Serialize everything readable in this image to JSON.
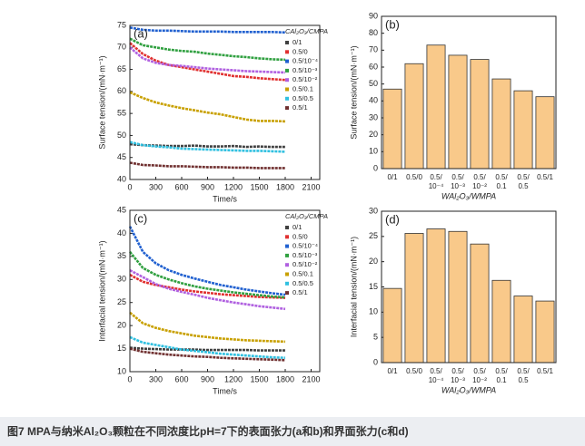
{
  "caption": "图7 MPA与纳米Al₂O₃颗粒在不同浓度比pH=7下的表面张力(a和b)和界面张力(c和d)",
  "chart_data": [
    {
      "type": "line",
      "panel_label": "(a)",
      "x_label": "Time/s",
      "y_label": "Surface tension/(mN·m⁻¹)",
      "xlim": [
        0,
        2200
      ],
      "xticks": [
        0,
        300,
        600,
        900,
        1200,
        1500,
        1800,
        2100
      ],
      "ylim": [
        40,
        75
      ],
      "yticks": [
        40,
        45,
        50,
        55,
        60,
        65,
        70,
        75
      ],
      "legend_title": "CAl₂O₃/CMPA",
      "legend_position": "upper right",
      "x": [
        0,
        150,
        300,
        450,
        600,
        750,
        900,
        1050,
        1200,
        1350,
        1500,
        1650,
        1800
      ],
      "series": [
        {
          "name": "0/1",
          "color": "#404040",
          "values": [
            48,
            47.8,
            47.7,
            47.6,
            47.6,
            47.7,
            47.5,
            47.5,
            47.6,
            47.4,
            47.5,
            47.4,
            47.4
          ]
        },
        {
          "name": "0.5/0",
          "color": "#e03030",
          "values": [
            71,
            68.5,
            67,
            66,
            65.5,
            65,
            64.5,
            64,
            63.5,
            63.3,
            63,
            62.8,
            62.6
          ]
        },
        {
          "name": "0.5/10⁻⁴",
          "color": "#2060d0",
          "values": [
            74.5,
            74,
            73.8,
            73.8,
            73.7,
            73.6,
            73.6,
            73.6,
            73.5,
            73.5,
            73.5,
            73.5,
            73.4
          ]
        },
        {
          "name": "0.5/10⁻³",
          "color": "#30a040",
          "values": [
            72,
            70.5,
            70,
            69.5,
            69.2,
            69,
            68.6,
            68.3,
            68,
            67.8,
            67.5,
            67.3,
            67.2
          ]
        },
        {
          "name": "0.5/10⁻²",
          "color": "#b060e0",
          "values": [
            70,
            67.5,
            66.5,
            66,
            65.8,
            65.5,
            65.2,
            65,
            64.8,
            64.6,
            64.5,
            64.4,
            64.3
          ]
        },
        {
          "name": "0.5/0.1",
          "color": "#c8a000",
          "values": [
            59.8,
            58.5,
            57.5,
            56.8,
            56.2,
            55.7,
            55.2,
            54.8,
            54.2,
            53.6,
            53.3,
            53.3,
            53.2
          ]
        },
        {
          "name": "0.5/0.5",
          "color": "#30c0e0",
          "values": [
            48.5,
            47.8,
            47.5,
            47.3,
            47,
            46.9,
            46.8,
            46.7,
            46.6,
            46.5,
            46.5,
            46.4,
            46.3
          ]
        },
        {
          "name": "0.5/1",
          "color": "#703030",
          "values": [
            43.8,
            43.3,
            43.2,
            43,
            43,
            42.9,
            42.8,
            42.8,
            42.7,
            42.7,
            42.6,
            42.6,
            42.6
          ]
        }
      ]
    },
    {
      "type": "bar",
      "panel_label": "(b)",
      "x_label": "WAl₂O₃/WMPA",
      "y_label": "Surface tension/(mN·m⁻¹)",
      "ylim": [
        0,
        90
      ],
      "yticks": [
        0,
        10,
        20,
        30,
        40,
        50,
        60,
        70,
        80,
        90
      ],
      "color": "#f9c98a",
      "categories": [
        [
          "0/1"
        ],
        [
          "0.5/0"
        ],
        [
          "0.5/",
          "10⁻⁴"
        ],
        [
          "0.5/",
          "10⁻³"
        ],
        [
          "0.5/",
          "10⁻²"
        ],
        [
          "0.5/",
          "0.1"
        ],
        [
          "0.5/",
          "0.5"
        ],
        [
          "0.5/1"
        ]
      ],
      "values": [
        47,
        62,
        73,
        67,
        64.5,
        53,
        46,
        42.5
      ]
    },
    {
      "type": "line",
      "panel_label": "(c)",
      "x_label": "Time/s",
      "y_label": "Interfacial tension/(mN·m⁻¹)",
      "xlim": [
        0,
        2200
      ],
      "xticks": [
        0,
        300,
        600,
        900,
        1200,
        1500,
        1800,
        2100
      ],
      "ylim": [
        10,
        45
      ],
      "yticks": [
        10,
        15,
        20,
        25,
        30,
        35,
        40,
        45
      ],
      "legend_title": "CAl₂O₃/CMPA",
      "legend_position": "upper right",
      "x": [
        0,
        150,
        300,
        450,
        600,
        750,
        900,
        1050,
        1200,
        1350,
        1500,
        1650,
        1800
      ],
      "series": [
        {
          "name": "0/1",
          "color": "#404040",
          "values": [
            15.2,
            15,
            14.9,
            14.8,
            14.8,
            14.8,
            14.7,
            14.7,
            14.7,
            14.7,
            14.6,
            14.6,
            14.6
          ]
        },
        {
          "name": "0.5/0",
          "color": "#e03030",
          "values": [
            31,
            29.5,
            28.8,
            28.3,
            27.8,
            27.4,
            27.1,
            26.8,
            26.6,
            26.4,
            26.2,
            26.1,
            26
          ]
        },
        {
          "name": "0.5/10⁻⁴",
          "color": "#2060d0",
          "values": [
            41.5,
            36,
            33.5,
            32,
            31,
            30.2,
            29.5,
            28.8,
            28.3,
            27.8,
            27.4,
            27,
            26.7
          ]
        },
        {
          "name": "0.5/10⁻³",
          "color": "#30a040",
          "values": [
            36,
            32.5,
            31,
            30,
            29.2,
            28.5,
            28,
            27.6,
            27.2,
            26.9,
            26.6,
            26.3,
            26.1
          ]
        },
        {
          "name": "0.5/10⁻²",
          "color": "#b060e0",
          "values": [
            32,
            30.5,
            29,
            28,
            27.3,
            26.7,
            26,
            25.5,
            25,
            24.6,
            24.2,
            23.9,
            23.6
          ]
        },
        {
          "name": "0.5/0.1",
          "color": "#c8a000",
          "values": [
            22.8,
            20.5,
            19.5,
            18.8,
            18.3,
            17.8,
            17.5,
            17.2,
            17,
            16.8,
            16.7,
            16.6,
            16.5
          ]
        },
        {
          "name": "0.5/0.5",
          "color": "#30c0e0",
          "values": [
            17.5,
            16.3,
            15.8,
            15.3,
            14.8,
            14.5,
            14.2,
            13.9,
            13.7,
            13.5,
            13.3,
            13.1,
            13
          ]
        },
        {
          "name": "0.5/1",
          "color": "#703030",
          "values": [
            15,
            14.3,
            14,
            13.7,
            13.5,
            13.3,
            13.2,
            13,
            12.9,
            12.8,
            12.7,
            12.6,
            12.5
          ]
        }
      ]
    },
    {
      "type": "bar",
      "panel_label": "(d)",
      "x_label": "WAl₂O₃/WMPA",
      "y_label": "Interfacial tension/(mN·m⁻¹)",
      "ylim": [
        0,
        30
      ],
      "yticks": [
        0,
        5,
        10,
        15,
        20,
        25,
        30
      ],
      "color": "#f9c98a",
      "categories": [
        [
          "0/1"
        ],
        [
          "0.5/0"
        ],
        [
          "0.5/",
          "10⁻⁴"
        ],
        [
          "0.5/",
          "10⁻³"
        ],
        [
          "0.5/",
          "10⁻²"
        ],
        [
          "0.5/",
          "0.1"
        ],
        [
          "0.5/",
          "0.5"
        ],
        [
          "0.5/1"
        ]
      ],
      "values": [
        14.7,
        25.6,
        26.5,
        26,
        23.5,
        16.3,
        13.2,
        12.2
      ]
    }
  ]
}
